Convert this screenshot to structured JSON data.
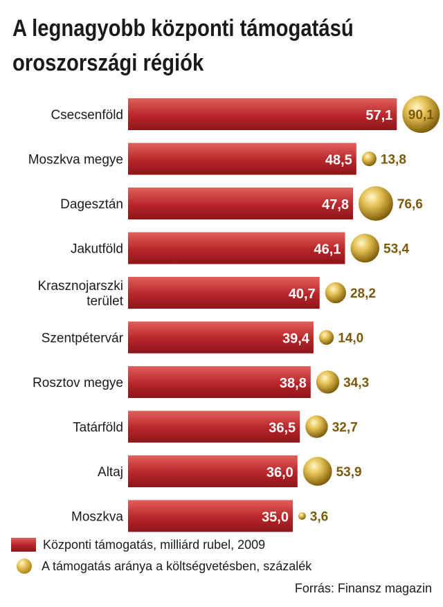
{
  "title": {
    "line1": "A legnagyobb központi támogatású",
    "line2": "oroszországi régiók"
  },
  "chart_data": {
    "type": "bar",
    "orientation": "horizontal",
    "categories": [
      [
        "Csecsenföld"
      ],
      [
        "Moszkva megye"
      ],
      [
        "Dagesztán"
      ],
      [
        "Jakutföld"
      ],
      [
        "Krasznojarszki",
        "terület"
      ],
      [
        "Szentpétervár"
      ],
      [
        "Rosztov megye"
      ],
      [
        "Tatárföld"
      ],
      [
        "Altaj"
      ],
      [
        "Moszkva"
      ]
    ],
    "series": [
      {
        "name": "Központi támogatás, milliárd rubel, 2009",
        "mark": "bar",
        "values": [
          57.1,
          48.5,
          47.8,
          46.1,
          40.7,
          39.4,
          38.8,
          36.5,
          36.0,
          35.0
        ],
        "labels": [
          "57,1",
          "48,5",
          "47,8",
          "46,1",
          "40,7",
          "39,4",
          "38,8",
          "36,5",
          "36,0",
          "35,0"
        ]
      },
      {
        "name": "A támogatás aránya a költségvetésben, százalék",
        "mark": "bubble",
        "values": [
          90.1,
          13.8,
          76.6,
          53.4,
          28.2,
          14.0,
          34.3,
          32.7,
          53.9,
          3.6
        ],
        "labels": [
          "90,1",
          "13,8",
          "76,6",
          "53,4",
          "28,2",
          "14,0",
          "34,3",
          "32,7",
          "53,9",
          "3,6"
        ]
      }
    ],
    "colors": {
      "bar_light": "#e0605c",
      "bar_mid": "#b8252a",
      "bar_dark": "#8c1619",
      "bubble_light": "#fff6c8",
      "bubble_mid": "#e3bf52",
      "bubble_dark": "#7b5a08",
      "bubble_label": "#7a5a0a"
    },
    "legend_position": "bottom-left"
  },
  "legend": {
    "bar_label": "Központi támogatás, milliárd rubel, 2009",
    "bubble_label": "A támogatás aránya a költségvetésben, százalék"
  },
  "source": "Forrás: Finansz magazin"
}
